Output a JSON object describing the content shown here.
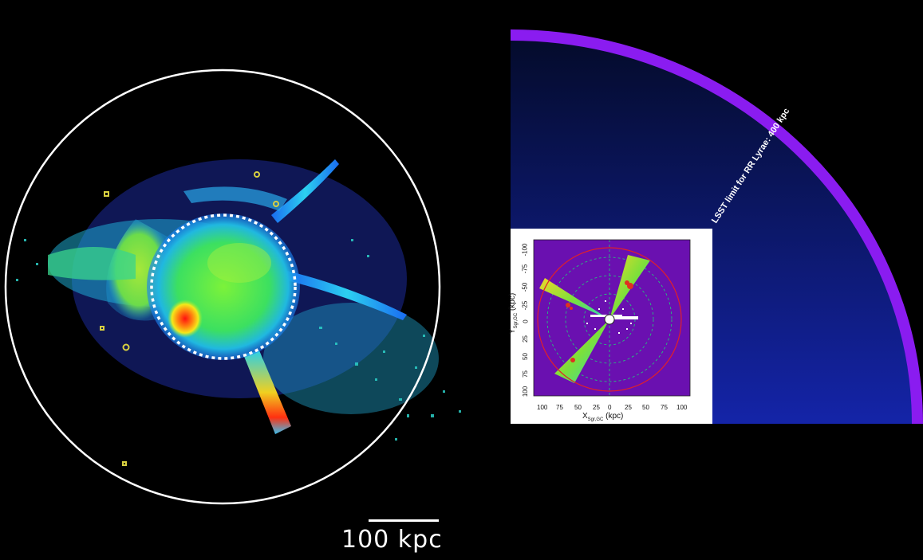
{
  "left_panel": {
    "scale_bar_label": "100 kpc"
  },
  "right_panel": {
    "limit_label": "LSST limit for RR Lyrae: 400 kpc",
    "colors": {
      "limit_arc": "#8a1cf0",
      "background_top": "#040b2a",
      "background_bottom": "#1424a8"
    }
  },
  "inset": {
    "x_label": "X",
    "x_label_sub": "Sgr,GC",
    "x_label_unit": "(kpc)",
    "y_label": "Y",
    "y_label_sub": "Sgr,GC",
    "y_label_unit": "(kpc)",
    "x_ticks": [
      "100",
      "75",
      "50",
      "25",
      "0",
      "25",
      "50",
      "75",
      "100"
    ],
    "y_ticks": [
      "-100",
      "-75",
      "-50",
      "-25",
      "0",
      "25",
      "50",
      "75",
      "100"
    ],
    "colors": {
      "background": "#6a10b0",
      "boundary_circle": "#e0202a",
      "guide_circles": "#1fd07a"
    }
  }
}
